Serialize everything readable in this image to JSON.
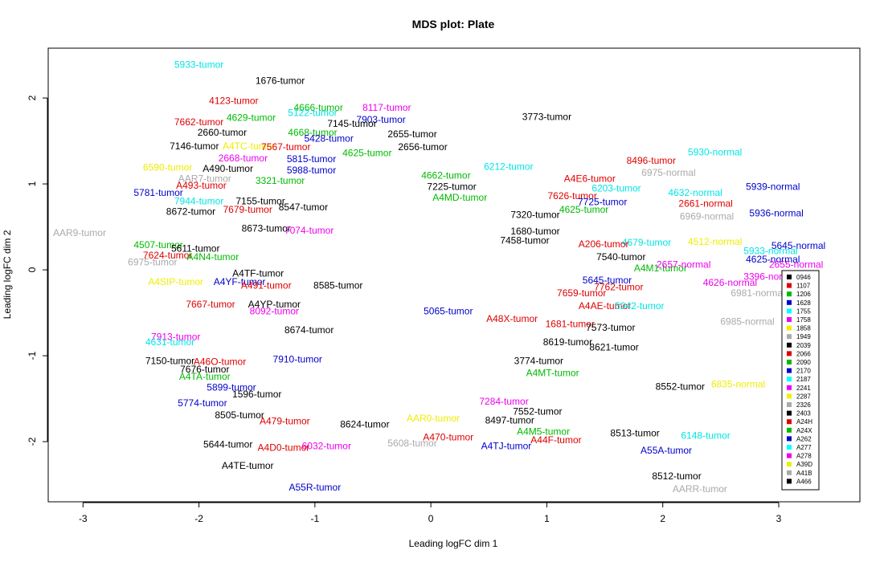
{
  "chart_data": {
    "type": "scatter",
    "title": "MDS plot: Plate",
    "xlabel": "Leading logFC dim 1",
    "ylabel": "Leading logFC dim 2",
    "xlim": [
      -3.3,
      3.7
    ],
    "ylim": [
      -2.7,
      2.58
    ],
    "xticks": [
      -3,
      -2,
      -1,
      0,
      1,
      2,
      3
    ],
    "yticks": [
      -2,
      -1,
      0,
      1,
      2
    ],
    "legend": {
      "position": "right",
      "entries": [
        {
          "name": "0946",
          "color": "#000000"
        },
        {
          "name": "1107",
          "color": "#DF0000"
        },
        {
          "name": "1206",
          "color": "#00BB00"
        },
        {
          "name": "1628",
          "color": "#0000CC"
        },
        {
          "name": "1755",
          "color": "#00FFFF"
        },
        {
          "name": "1758",
          "color": "#EE00EE"
        },
        {
          "name": "1858",
          "color": "#EEEE00"
        },
        {
          "name": "1949",
          "color": "#AAAAAA"
        },
        {
          "name": "2039",
          "color": "#000000"
        },
        {
          "name": "2066",
          "color": "#DF0000"
        },
        {
          "name": "2090",
          "color": "#00BB00"
        },
        {
          "name": "2170",
          "color": "#0000CC"
        },
        {
          "name": "2187",
          "color": "#00FFFF"
        },
        {
          "name": "2241",
          "color": "#EE00EE"
        },
        {
          "name": "2287",
          "color": "#EEEE00"
        },
        {
          "name": "2326",
          "color": "#AAAAAA"
        },
        {
          "name": "2403",
          "color": "#000000"
        },
        {
          "name": "A24H",
          "color": "#DF0000"
        },
        {
          "name": "A24X",
          "color": "#00BB00"
        },
        {
          "name": "A262",
          "color": "#0000CC"
        },
        {
          "name": "A277",
          "color": "#00FFFF"
        },
        {
          "name": "A278",
          "color": "#EE00EE"
        },
        {
          "name": "A39D",
          "color": "#EEEE00"
        },
        {
          "name": "A41B",
          "color": "#AAAAAA"
        },
        {
          "name": "A466",
          "color": "#000000"
        }
      ]
    },
    "points": [
      {
        "label": "5933-tumor",
        "x": -2.0,
        "y": 2.39,
        "color": "#00E5E5"
      },
      {
        "label": "1676-tumor",
        "x": -1.3,
        "y": 2.2,
        "color": "#000000"
      },
      {
        "label": "4123-tumor",
        "x": -1.7,
        "y": 1.97,
        "color": "#DF0000"
      },
      {
        "label": "4666-tumor",
        "x": -0.97,
        "y": 1.89,
        "color": "#00BB00"
      },
      {
        "label": "8117-tumor",
        "x": -0.38,
        "y": 1.89,
        "color": "#EE00EE"
      },
      {
        "label": "5122-tumor",
        "x": -1.02,
        "y": 1.83,
        "color": "#00E5E5"
      },
      {
        "label": "4629-tumor",
        "x": -1.55,
        "y": 1.77,
        "color": "#00BB00"
      },
      {
        "label": "7903-tumor",
        "x": -0.43,
        "y": 1.75,
        "color": "#0000CC"
      },
      {
        "label": "3773-tumor",
        "x": 1.0,
        "y": 1.78,
        "color": "#000000"
      },
      {
        "label": "7662-tumor",
        "x": -2.0,
        "y": 1.72,
        "color": "#DF0000"
      },
      {
        "label": "7145-tumor",
        "x": -0.68,
        "y": 1.7,
        "color": "#000000"
      },
      {
        "label": "4668-tumor",
        "x": -1.02,
        "y": 1.6,
        "color": "#00BB00"
      },
      {
        "label": "2660-tumor",
        "x": -1.8,
        "y": 1.6,
        "color": "#000000"
      },
      {
        "label": "2655-tumor",
        "x": -0.16,
        "y": 1.58,
        "color": "#000000"
      },
      {
        "label": "5428-tumor",
        "x": -0.88,
        "y": 1.53,
        "color": "#0000CC"
      },
      {
        "label": "7146-tumor",
        "x": -2.04,
        "y": 1.44,
        "color": "#000000"
      },
      {
        "label": "A4TC-tumor",
        "x": -1.57,
        "y": 1.44,
        "color": "#EEEE00"
      },
      {
        "label": "7567-tumor",
        "x": -1.25,
        "y": 1.43,
        "color": "#DF0000"
      },
      {
        "label": "2656-tumor",
        "x": -0.07,
        "y": 1.43,
        "color": "#000000"
      },
      {
        "label": "4625-tumor",
        "x": -0.55,
        "y": 1.36,
        "color": "#00BB00"
      },
      {
        "label": "2668-tumor",
        "x": -1.62,
        "y": 1.3,
        "color": "#EE00EE"
      },
      {
        "label": "5815-tumor",
        "x": -1.03,
        "y": 1.29,
        "color": "#0000CC"
      },
      {
        "label": "6590-tumor",
        "x": -2.27,
        "y": 1.19,
        "color": "#EEEE00"
      },
      {
        "label": "A490-tumor",
        "x": -1.75,
        "y": 1.18,
        "color": "#000000"
      },
      {
        "label": "6212-tumor",
        "x": 0.67,
        "y": 1.2,
        "color": "#00E5E5"
      },
      {
        "label": "5988-tumor",
        "x": -1.03,
        "y": 1.16,
        "color": "#0000CC"
      },
      {
        "label": "4662-tumor",
        "x": 0.13,
        "y": 1.1,
        "color": "#00BB00"
      },
      {
        "label": "8496-tumor",
        "x": 1.9,
        "y": 1.27,
        "color": "#DF0000"
      },
      {
        "label": "5930-normal",
        "x": 2.45,
        "y": 1.37,
        "color": "#00E5E5"
      },
      {
        "label": "6975-normal",
        "x": 2.05,
        "y": 1.13,
        "color": "#AAAAAA"
      },
      {
        "label": "A4E6-tumor",
        "x": 1.37,
        "y": 1.06,
        "color": "#DF0000"
      },
      {
        "label": "AAR7-tumor",
        "x": -1.95,
        "y": 1.06,
        "color": "#AAAAAA"
      },
      {
        "label": "A493-tumor",
        "x": -1.98,
        "y": 0.98,
        "color": "#DF0000"
      },
      {
        "label": "3321-tumor",
        "x": -1.3,
        "y": 1.04,
        "color": "#00BB00"
      },
      {
        "label": "7225-tumor",
        "x": 0.18,
        "y": 0.97,
        "color": "#000000"
      },
      {
        "label": "6203-tumor",
        "x": 1.6,
        "y": 0.95,
        "color": "#00E5E5"
      },
      {
        "label": "5939-normal",
        "x": 2.95,
        "y": 0.97,
        "color": "#0000CC"
      },
      {
        "label": "5781-tumor",
        "x": -2.35,
        "y": 0.9,
        "color": "#0000CC"
      },
      {
        "label": "4632-normal",
        "x": 2.28,
        "y": 0.9,
        "color": "#00E5E5"
      },
      {
        "label": "7626-tumor",
        "x": 1.22,
        "y": 0.86,
        "color": "#DF0000"
      },
      {
        "label": "2661-normal",
        "x": 2.37,
        "y": 0.77,
        "color": "#DF0000"
      },
      {
        "label": "7944-tumor",
        "x": -2.0,
        "y": 0.8,
        "color": "#00E5E5"
      },
      {
        "label": "7155-tumor",
        "x": -1.47,
        "y": 0.8,
        "color": "#000000"
      },
      {
        "label": "A4MD-tumor",
        "x": 0.25,
        "y": 0.84,
        "color": "#00BB00"
      },
      {
        "label": "7725-tumor",
        "x": 1.48,
        "y": 0.79,
        "color": "#0000CC"
      },
      {
        "label": "8547-tumor",
        "x": -1.1,
        "y": 0.73,
        "color": "#000000"
      },
      {
        "label": "7679-tumor",
        "x": -1.58,
        "y": 0.7,
        "color": "#DF0000"
      },
      {
        "label": "4625-tumor",
        "x": 1.32,
        "y": 0.7,
        "color": "#00BB00"
      },
      {
        "label": "8672-tumor",
        "x": -2.07,
        "y": 0.68,
        "color": "#000000"
      },
      {
        "label": "7320-tumor",
        "x": 0.9,
        "y": 0.64,
        "color": "#000000"
      },
      {
        "label": "5936-normal",
        "x": 2.98,
        "y": 0.66,
        "color": "#0000CC"
      },
      {
        "label": "6969-normal",
        "x": 2.38,
        "y": 0.62,
        "color": "#AAAAAA"
      },
      {
        "label": "1680-tumor",
        "x": 0.9,
        "y": 0.45,
        "color": "#000000"
      },
      {
        "label": "8673-tumor",
        "x": -1.42,
        "y": 0.48,
        "color": "#000000"
      },
      {
        "label": "7074-tumor",
        "x": -1.05,
        "y": 0.46,
        "color": "#EE00EE"
      },
      {
        "label": "AAR9-tumor",
        "x": -3.03,
        "y": 0.43,
        "color": "#AAAAAA"
      },
      {
        "label": "4507-tumor",
        "x": -2.35,
        "y": 0.29,
        "color": "#00BB00"
      },
      {
        "label": "7458-tumor",
        "x": 0.81,
        "y": 0.34,
        "color": "#000000"
      },
      {
        "label": "4679-tumor",
        "x": 1.86,
        "y": 0.32,
        "color": "#00E5E5"
      },
      {
        "label": "4512-normal",
        "x": 2.45,
        "y": 0.33,
        "color": "#EEEE00"
      },
      {
        "label": "A206-tumor",
        "x": 1.49,
        "y": 0.3,
        "color": "#DF0000"
      },
      {
        "label": "5645-normal",
        "x": 3.17,
        "y": 0.28,
        "color": "#0000CC"
      },
      {
        "label": "5611-tumor",
        "x": -2.03,
        "y": 0.25,
        "color": "#000000"
      },
      {
        "label": "5933-normal",
        "x": 2.93,
        "y": 0.22,
        "color": "#00E5E5"
      },
      {
        "label": "7624-tumor",
        "x": -2.27,
        "y": 0.17,
        "color": "#DF0000"
      },
      {
        "label": "7540-tumor",
        "x": 1.64,
        "y": 0.15,
        "color": "#000000"
      },
      {
        "label": "6975-tumor",
        "x": -2.4,
        "y": 0.09,
        "color": "#AAAAAA"
      },
      {
        "label": "A4N4-tumor",
        "x": -1.88,
        "y": 0.15,
        "color": "#00BB00"
      },
      {
        "label": "4625-normal",
        "x": 2.95,
        "y": 0.12,
        "color": "#0000CC"
      },
      {
        "label": "A4M1-tumor",
        "x": 1.98,
        "y": 0.02,
        "color": "#00BB00"
      },
      {
        "label": "2657-normal",
        "x": 2.18,
        "y": 0.06,
        "color": "#EE00EE"
      },
      {
        "label": "2655-normal",
        "x": 3.15,
        "y": 0.06,
        "color": "#EE00EE"
      },
      {
        "label": "A4TF-tumor",
        "x": -1.49,
        "y": -0.04,
        "color": "#000000"
      },
      {
        "label": "A4SIP-tumor",
        "x": -2.2,
        "y": -0.14,
        "color": "#EEEE00"
      },
      {
        "label": "A4YF-tumor",
        "x": -1.65,
        "y": -0.14,
        "color": "#0000CC"
      },
      {
        "label": "3396-normal",
        "x": 2.93,
        "y": -0.08,
        "color": "#EE00EE"
      },
      {
        "label": "5645-tumor",
        "x": 1.52,
        "y": -0.12,
        "color": "#0000CC"
      },
      {
        "label": "4626-normal",
        "x": 2.58,
        "y": -0.15,
        "color": "#EE00EE"
      },
      {
        "label": "A491-tumor",
        "x": -1.42,
        "y": -0.18,
        "color": "#DF0000"
      },
      {
        "label": "8585-tumor",
        "x": -0.8,
        "y": -0.18,
        "color": "#000000"
      },
      {
        "label": "7762-tumor",
        "x": 1.62,
        "y": -0.2,
        "color": "#DF0000"
      },
      {
        "label": "6981-normal",
        "x": 2.82,
        "y": -0.27,
        "color": "#AAAAAA"
      },
      {
        "label": "7659-tumor",
        "x": 1.3,
        "y": -0.27,
        "color": "#DF0000"
      },
      {
        "label": "7667-tumor",
        "x": -1.9,
        "y": -0.4,
        "color": "#DF0000"
      },
      {
        "label": "A4YP-tumor",
        "x": -1.35,
        "y": -0.4,
        "color": "#000000"
      },
      {
        "label": "A4AE-tumor",
        "x": 1.5,
        "y": -0.42,
        "color": "#DF0000"
      },
      {
        "label": "5942-tumor",
        "x": 1.8,
        "y": -0.42,
        "color": "#00E5E5"
      },
      {
        "label": "8092-tumor",
        "x": -1.35,
        "y": -0.48,
        "color": "#EE00EE"
      },
      {
        "label": "5065-tumor",
        "x": 0.15,
        "y": -0.48,
        "color": "#0000CC"
      },
      {
        "label": "A48X-tumor",
        "x": 0.7,
        "y": -0.57,
        "color": "#DF0000"
      },
      {
        "label": "1681-tumor",
        "x": 1.2,
        "y": -0.63,
        "color": "#DF0000"
      },
      {
        "label": "6985-normal",
        "x": 2.73,
        "y": -0.6,
        "color": "#AAAAAA"
      },
      {
        "label": "7573-tumor",
        "x": 1.55,
        "y": -0.67,
        "color": "#000000"
      },
      {
        "label": "8674-tumor",
        "x": -1.05,
        "y": -0.7,
        "color": "#000000"
      },
      {
        "label": "7913-tumor",
        "x": -2.2,
        "y": -0.78,
        "color": "#EE00EE"
      },
      {
        "label": "4631-tumor",
        "x": -2.25,
        "y": -0.84,
        "color": "#00E5E5"
      },
      {
        "label": "8619-tumor",
        "x": 1.18,
        "y": -0.84,
        "color": "#000000"
      },
      {
        "label": "8621-tumor",
        "x": 1.58,
        "y": -0.9,
        "color": "#000000"
      },
      {
        "label": "7910-tumor",
        "x": -1.15,
        "y": -1.04,
        "color": "#0000CC"
      },
      {
        "label": "7150-tumor",
        "x": -2.25,
        "y": -1.06,
        "color": "#000000"
      },
      {
        "label": "A46O-tumor",
        "x": -1.82,
        "y": -1.07,
        "color": "#DF0000"
      },
      {
        "label": "3774-tumor",
        "x": 0.93,
        "y": -1.06,
        "color": "#000000"
      },
      {
        "label": "7676-tumor",
        "x": -1.95,
        "y": -1.16,
        "color": "#000000"
      },
      {
        "label": "A4TA-tumor",
        "x": -1.95,
        "y": -1.24,
        "color": "#00BB00"
      },
      {
        "label": "A4MT-tumor",
        "x": 1.05,
        "y": -1.2,
        "color": "#00BB00"
      },
      {
        "label": "8552-tumor",
        "x": 2.15,
        "y": -1.36,
        "color": "#000000"
      },
      {
        "label": "6835-normal",
        "x": 2.65,
        "y": -1.33,
        "color": "#EEEE00"
      },
      {
        "label": "5899-tumor",
        "x": -1.72,
        "y": -1.37,
        "color": "#0000CC"
      },
      {
        "label": "1596-tumor",
        "x": -1.5,
        "y": -1.45,
        "color": "#000000"
      },
      {
        "label": "5774-tumor",
        "x": -1.97,
        "y": -1.55,
        "color": "#0000CC"
      },
      {
        "label": "7284-tumor",
        "x": 0.63,
        "y": -1.53,
        "color": "#EE00EE"
      },
      {
        "label": "8505-tumor",
        "x": -1.65,
        "y": -1.69,
        "color": "#000000"
      },
      {
        "label": "A479-tumor",
        "x": -1.26,
        "y": -1.76,
        "color": "#DF0000"
      },
      {
        "label": "7552-tumor",
        "x": 0.92,
        "y": -1.65,
        "color": "#000000"
      },
      {
        "label": "8497-tumor",
        "x": 0.68,
        "y": -1.75,
        "color": "#000000"
      },
      {
        "label": "AAR0-tumor",
        "x": 0.02,
        "y": -1.73,
        "color": "#EEEE00"
      },
      {
        "label": "8624-tumor",
        "x": -0.57,
        "y": -1.8,
        "color": "#000000"
      },
      {
        "label": "8513-tumor",
        "x": 1.76,
        "y": -1.9,
        "color": "#000000"
      },
      {
        "label": "A4M5-tumor",
        "x": 0.97,
        "y": -1.88,
        "color": "#00BB00"
      },
      {
        "label": "6148-tumor",
        "x": 2.37,
        "y": -1.93,
        "color": "#00E5E5"
      },
      {
        "label": "A470-tumor",
        "x": 0.15,
        "y": -1.95,
        "color": "#DF0000"
      },
      {
        "label": "A44F-tumor",
        "x": 1.08,
        "y": -1.98,
        "color": "#DF0000"
      },
      {
        "label": "5644-tumor",
        "x": -1.75,
        "y": -2.03,
        "color": "#000000"
      },
      {
        "label": "6032-tumor",
        "x": -0.9,
        "y": -2.05,
        "color": "#EE00EE"
      },
      {
        "label": "A4D0-tumor",
        "x": -1.27,
        "y": -2.07,
        "color": "#DF0000"
      },
      {
        "label": "5608-tumor",
        "x": -0.16,
        "y": -2.02,
        "color": "#AAAAAA"
      },
      {
        "label": "A4TJ-tumor",
        "x": 0.65,
        "y": -2.05,
        "color": "#0000CC"
      },
      {
        "label": "A55A-tumor",
        "x": 2.03,
        "y": -2.1,
        "color": "#0000CC"
      },
      {
        "label": "A4TE-tumor",
        "x": -1.58,
        "y": -2.28,
        "color": "#000000"
      },
      {
        "label": "8512-tumor",
        "x": 2.12,
        "y": -2.4,
        "color": "#000000"
      },
      {
        "label": "A55R-tumor",
        "x": -1.0,
        "y": -2.53,
        "color": "#0000CC"
      },
      {
        "label": "AARR-tumor",
        "x": 2.32,
        "y": -2.55,
        "color": "#AAAAAA"
      }
    ]
  }
}
